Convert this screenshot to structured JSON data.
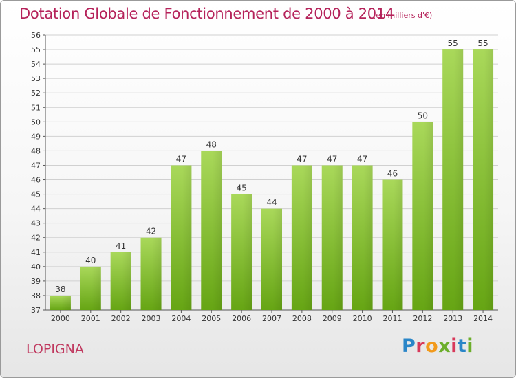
{
  "title": "Dotation Globale de Fonctionnement de 2000 à 2014",
  "unit": "(en milliers d'€)",
  "commune": "LOPIGNA",
  "logo": {
    "text": "Proxiti",
    "colors": [
      "#2a86c8",
      "#f29a1c",
      "#6cae2b",
      "#d8395a"
    ]
  },
  "colors": {
    "title": "#b5225a",
    "bar_light": "#a9d85a",
    "bar_dark": "#66a514"
  },
  "chart_data": {
    "type": "bar",
    "categories": [
      "2000",
      "2001",
      "2002",
      "2003",
      "2004",
      "2005",
      "2006",
      "2007",
      "2008",
      "2009",
      "2010",
      "2011",
      "2012",
      "2013",
      "2014"
    ],
    "values": [
      38,
      40,
      41,
      42,
      47,
      48,
      45,
      44,
      47,
      47,
      47,
      46,
      50,
      55,
      55
    ],
    "title": "Dotation Globale de Fonctionnement de 2000 à 2014",
    "subtitle": "(en milliers d'€)",
    "xlabel": "",
    "ylabel": "",
    "ylim": [
      37,
      56
    ],
    "yticks": [
      37,
      38,
      39,
      40,
      41,
      42,
      43,
      44,
      45,
      46,
      47,
      48,
      49,
      50,
      51,
      52,
      53,
      54,
      55,
      56
    ],
    "grid": true,
    "data_labels": true
  }
}
